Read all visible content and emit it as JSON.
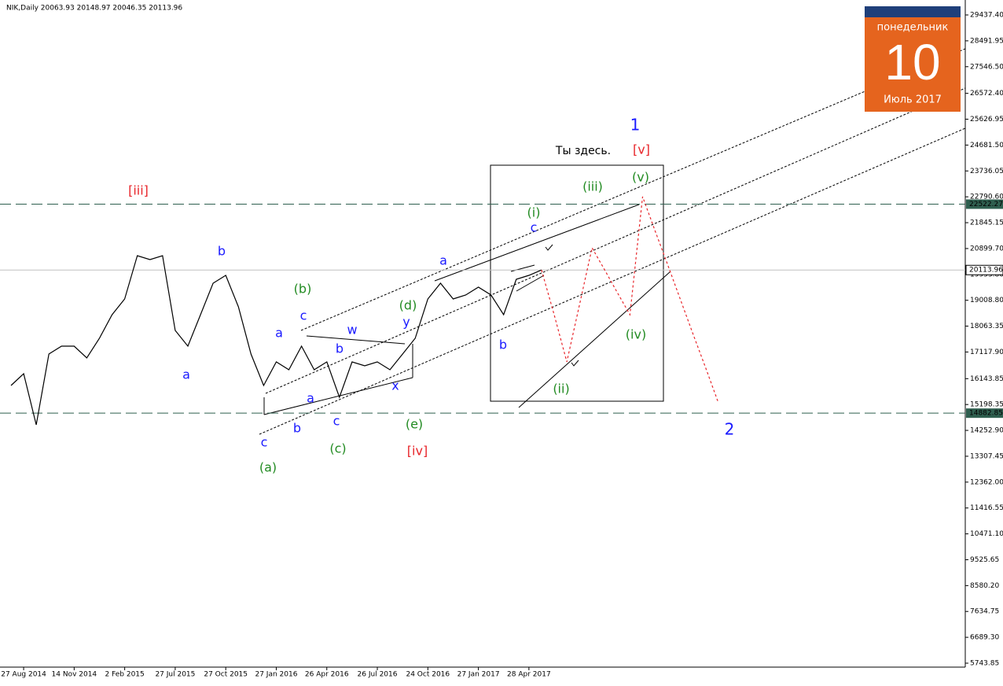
{
  "chart_data": {
    "type": "line",
    "title": "NIK,Daily  20063.93 20148.97 20046.35 20113.96",
    "categories": [
      null,
      "27 Aug 2014",
      null,
      null,
      null,
      "14 Nov 2014",
      null,
      null,
      null,
      "2 Feb 2015",
      null,
      null,
      null,
      "27 Jul 2015",
      null,
      null,
      null,
      "27 Oct 2015",
      null,
      null,
      null,
      "27 Jan 2016",
      null,
      null,
      null,
      "26 Apr 2016",
      null,
      null,
      null,
      "26 Jul 2016",
      null,
      null,
      null,
      "24 Oct 2016",
      null,
      null,
      null,
      "27 Jan 2017",
      null,
      null,
      null,
      "28 Apr 2017",
      null,
      null,
      null,
      null,
      null,
      null,
      null,
      null,
      null,
      null,
      null,
      null,
      null,
      null,
      null
    ],
    "series": [
      {
        "color": "#000000",
        "values": [
          15893,
          16325,
          14456,
          17044,
          17331,
          17331,
          16900,
          17619,
          18481,
          19056,
          20638,
          20494,
          20638,
          17906,
          17331,
          18481,
          19632,
          19919,
          18769,
          17044,
          15893,
          16756,
          16468,
          17331,
          16468,
          16756,
          15462,
          16756,
          16612,
          16756,
          16468,
          17044,
          17619,
          19056,
          19632,
          19056,
          19200,
          19488,
          19200,
          18481,
          19775,
          19919,
          20114,
          null,
          null,
          null,
          null,
          null,
          null,
          null,
          null,
          null,
          null,
          null,
          null,
          null,
          null
        ]
      },
      {
        "color": "#e8262b",
        "dashed": true,
        "values": [
          null,
          null,
          null,
          null,
          null,
          null,
          null,
          null,
          null,
          null,
          null,
          null,
          null,
          null,
          null,
          null,
          null,
          null,
          null,
          null,
          null,
          null,
          null,
          null,
          null,
          null,
          null,
          null,
          null,
          null,
          null,
          null,
          null,
          null,
          null,
          null,
          null,
          null,
          null,
          null,
          null,
          null,
          20114,
          18481,
          16756,
          18827,
          20926,
          20114,
          19287,
          18481,
          22795,
          21529,
          20293,
          19028,
          17763,
          16526,
          15261
        ]
      }
    ],
    "ylim": [
      5600,
      29984
    ],
    "yticks": [
      {
        "value": 29437.4,
        "label": "29437.40"
      },
      28491.95,
      {
        "value": 27546.5,
        "label": "27546.50"
      },
      {
        "value": 26572.4,
        "label": "26572.40"
      },
      25626.95,
      {
        "value": 24681.5,
        "label": "24681.50"
      },
      23736.05,
      {
        "value": 22790.6,
        "label": "22790.60"
      },
      21845.15,
      {
        "value": 20899.7,
        "label": "20899.70"
      },
      {
        "value": 19953.8,
        "label": "19953.80"
      },
      {
        "value": 19008.8,
        "label": "19008.80"
      },
      18063.35,
      {
        "value": 17117.9,
        "label": "17117.90"
      },
      16143.85,
      15198.35,
      {
        "value": 14252.9,
        "label": "14252.90"
      },
      13307.45,
      {
        "value": 12362,
        "label": "12362.00"
      },
      11416.55,
      {
        "value": 10471.1,
        "label": "10471.10"
      },
      9525.65,
      {
        "value": 8580.2,
        "label": "8580.20"
      },
      7634.75,
      {
        "value": 6689.3,
        "label": "6689.30"
      },
      5743.85
    ],
    "levels": [
      22522.27,
      14882.85
    ],
    "current_price": 20113.96,
    "annotations": [
      {
        "text": "1",
        "color": "#1a1aff"
      },
      {
        "text": "[v]",
        "color": "#e8262b"
      },
      {
        "text": "Ты здесь.",
        "color": "#000000"
      },
      {
        "text": "(iii)",
        "color": "#228b22"
      },
      {
        "text": "(v)",
        "color": "#228b22"
      },
      {
        "text": "[iii]",
        "color": "#e8262b"
      },
      {
        "text": "(i)",
        "color": "#228b22"
      },
      {
        "text": "c",
        "color": "#1a1aff"
      },
      {
        "text": "a",
        "color": "#1a1aff"
      },
      {
        "text": "b",
        "color": "#1a1aff"
      },
      {
        "text": "(b)",
        "color": "#228b22"
      },
      {
        "text": "c",
        "color": "#1a1aff"
      },
      {
        "text": "(d)",
        "color": "#228b22"
      },
      {
        "text": "y",
        "color": "#1a1aff"
      },
      {
        "text": "a",
        "color": "#1a1aff"
      },
      {
        "text": "w",
        "color": "#1a1aff"
      },
      {
        "text": "b",
        "color": "#1a1aff"
      },
      {
        "text": "a",
        "color": "#1a1aff"
      },
      {
        "text": "b",
        "color": "#1a1aff"
      },
      {
        "text": "(iv)",
        "color": "#228b22"
      },
      {
        "text": "x",
        "color": "#1a1aff"
      },
      {
        "text": "(ii)",
        "color": "#228b22"
      },
      {
        "text": "a",
        "color": "#1a1aff"
      },
      {
        "text": "b",
        "color": "#1a1aff"
      },
      {
        "text": "c",
        "color": "#1a1aff"
      },
      {
        "text": "c",
        "color": "#1a1aff"
      },
      {
        "text": "(e)",
        "color": "#228b22"
      },
      {
        "text": "(c)",
        "color": "#228b22"
      },
      {
        "text": "[iv]",
        "color": "#e8262b"
      },
      {
        "text": "(a)",
        "color": "#228b22"
      },
      {
        "text": "2",
        "color": "#1a1aff"
      }
    ]
  },
  "calendar": {
    "weekday": "понедельник",
    "day": "10",
    "month": "Июль 2017"
  }
}
